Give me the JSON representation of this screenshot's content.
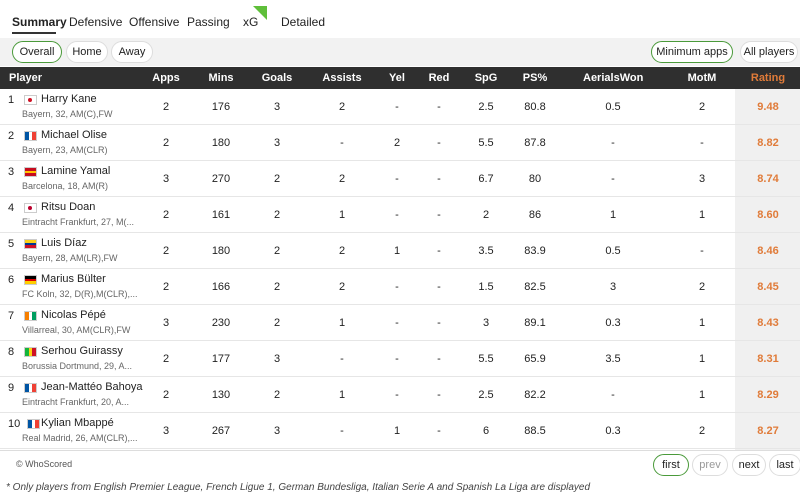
{
  "tabs": [
    "Summary",
    "Defensive",
    "Offensive",
    "Passing",
    "xG",
    "Detailed"
  ],
  "filters": {
    "left": [
      "Overall",
      "Home",
      "Away"
    ],
    "right": [
      "Minimum apps",
      "All players"
    ]
  },
  "table": {
    "headers": [
      "Player",
      "Apps",
      "Mins",
      "Goals",
      "Assists",
      "Yel",
      "Red",
      "SpG",
      "PS%",
      "AerialsWon",
      "MotM",
      "Rating"
    ],
    "rows": [
      {
        "rank": "1",
        "name": "Harry Kane",
        "info": "Bayern, 32, AM(C),FW",
        "cells": [
          "2",
          "176",
          "3",
          "2",
          "-",
          "-",
          "2.5",
          "80.8",
          "0.5",
          "2",
          "9.48"
        ]
      },
      {
        "rank": "2",
        "name": "Michael Olise",
        "info": "Bayern, 23, AM(CLR)",
        "cells": [
          "2",
          "180",
          "3",
          "-",
          "2",
          "-",
          "5.5",
          "87.8",
          "-",
          "-",
          "8.82"
        ]
      },
      {
        "rank": "3",
        "name": "Lamine Yamal",
        "info": "Barcelona, 18, AM(R)",
        "cells": [
          "3",
          "270",
          "2",
          "2",
          "-",
          "-",
          "6.7",
          "80",
          "-",
          "3",
          "8.74"
        ]
      },
      {
        "rank": "4",
        "name": "Ritsu Doan",
        "info": "Eintracht Frankfurt, 27, M(...",
        "cells": [
          "2",
          "161",
          "2",
          "1",
          "-",
          "-",
          "2",
          "86",
          "1",
          "1",
          "8.60"
        ]
      },
      {
        "rank": "5",
        "name": "Luis Díaz",
        "info": "Bayern, 28, AM(LR),FW",
        "cells": [
          "2",
          "180",
          "2",
          "2",
          "1",
          "-",
          "3.5",
          "83.9",
          "0.5",
          "-",
          "8.46"
        ]
      },
      {
        "rank": "6",
        "name": "Marius Bülter",
        "info": "FC Koln, 32, D(R),M(CLR),...",
        "cells": [
          "2",
          "166",
          "2",
          "2",
          "-",
          "-",
          "1.5",
          "82.5",
          "3",
          "2",
          "8.45"
        ]
      },
      {
        "rank": "7",
        "name": "Nicolas Pépé",
        "info": "Villarreal, 30, AM(CLR),FW",
        "cells": [
          "3",
          "230",
          "2",
          "1",
          "-",
          "-",
          "3",
          "89.1",
          "0.3",
          "1",
          "8.43"
        ]
      },
      {
        "rank": "8",
        "name": "Serhou Guirassy",
        "info": "Borussia Dortmund, 29, A...",
        "cells": [
          "2",
          "177",
          "3",
          "-",
          "-",
          "-",
          "5.5",
          "65.9",
          "3.5",
          "1",
          "8.31"
        ]
      },
      {
        "rank": "9",
        "name": "Jean-Mattéo Bahoya",
        "info": "Eintracht Frankfurt, 20, A...",
        "cells": [
          "2",
          "130",
          "2",
          "1",
          "-",
          "-",
          "2.5",
          "82.2",
          "-",
          "1",
          "8.29"
        ]
      },
      {
        "rank": "10",
        "name": "Kylian Mbappé",
        "info": "Real Madrid, 26, AM(CLR),...",
        "cells": [
          "3",
          "267",
          "3",
          "-",
          "1",
          "-",
          "6",
          "88.5",
          "0.3",
          "2",
          "8.27"
        ]
      }
    ]
  },
  "footer": {
    "copyright": "© WhoScored",
    "pagination": [
      "first",
      "prev",
      "next",
      "last"
    ]
  },
  "note": "* Only players from English Premier League, French Ligue 1, German Bundesliga, Italian Serie A and Spanish La Liga are displayed"
}
